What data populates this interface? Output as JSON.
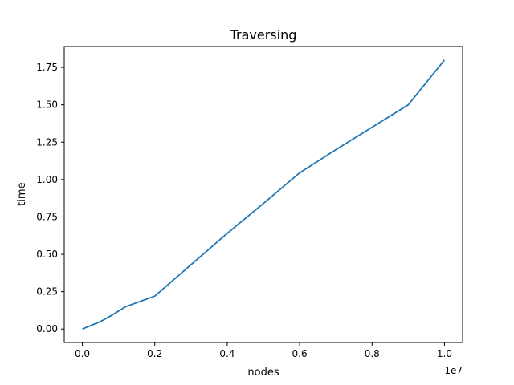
{
  "chart_data": {
    "type": "line",
    "title": "Traversing",
    "xlabel": "nodes",
    "ylabel": "time",
    "x_offset_text": "1e7",
    "xlim": [
      -0.05,
      1.05
    ],
    "ylim": [
      -0.09,
      1.89
    ],
    "x_ticks": [
      0.0,
      0.2,
      0.4,
      0.6,
      0.8,
      1.0
    ],
    "x_tick_labels": [
      "0.0",
      "0.2",
      "0.4",
      "0.6",
      "0.8",
      "1.0"
    ],
    "y_ticks": [
      0.0,
      0.25,
      0.5,
      0.75,
      1.0,
      1.25,
      1.5,
      1.75
    ],
    "y_tick_labels": [
      "0.00",
      "0.25",
      "0.50",
      "0.75",
      "1.00",
      "1.25",
      "1.50",
      "1.75"
    ],
    "grid": false,
    "series": [
      {
        "color": "#1f77b4",
        "x": [
          0.0,
          0.02,
          0.05,
          0.08,
          0.12,
          0.2,
          0.3,
          0.4,
          0.5,
          0.6,
          0.7,
          0.8,
          0.9,
          1.0
        ],
        "y": [
          0.0,
          0.02,
          0.05,
          0.09,
          0.15,
          0.22,
          0.43,
          0.64,
          0.84,
          1.045,
          1.2,
          1.35,
          1.5,
          1.8
        ]
      }
    ]
  }
}
